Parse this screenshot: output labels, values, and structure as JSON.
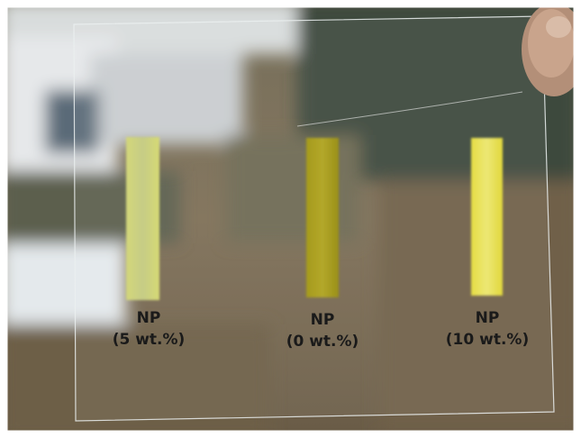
{
  "samples": [
    {
      "name": "NP",
      "concentration": "(5 wt.%)"
    },
    {
      "name": "NP",
      "concentration": "(0 wt.%)"
    },
    {
      "name": "NP",
      "concentration": "(10 wt.%)"
    }
  ]
}
